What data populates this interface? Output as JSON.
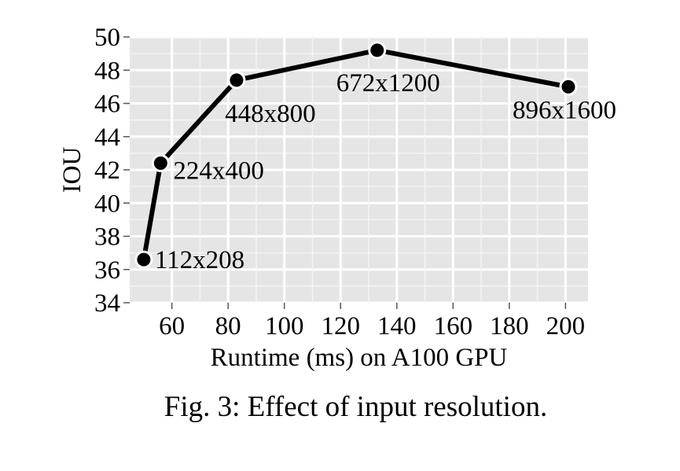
{
  "caption": "Fig. 3: Effect of input resolution.",
  "chart_data": {
    "type": "line",
    "title": "",
    "xlabel": "Runtime (ms) on A100 GPU",
    "ylabel": "IOU",
    "xlim": [
      45,
      208
    ],
    "ylim": [
      34,
      50
    ],
    "xticks": [
      60,
      80,
      100,
      120,
      140,
      160,
      180,
      200
    ],
    "yticks": [
      34,
      36,
      38,
      40,
      42,
      44,
      46,
      48,
      50
    ],
    "grid": true,
    "legend": "none",
    "background_color": "#e5e5e5",
    "line_color": "#000000",
    "series": [
      {
        "x": [
          50,
          56,
          83,
          133,
          201
        ],
        "y": [
          36.6,
          42.4,
          47.4,
          49.2,
          47.0
        ],
        "labels": [
          "112x208",
          "224x400",
          "448x800",
          "672x1200",
          "896x1600"
        ]
      }
    ]
  }
}
